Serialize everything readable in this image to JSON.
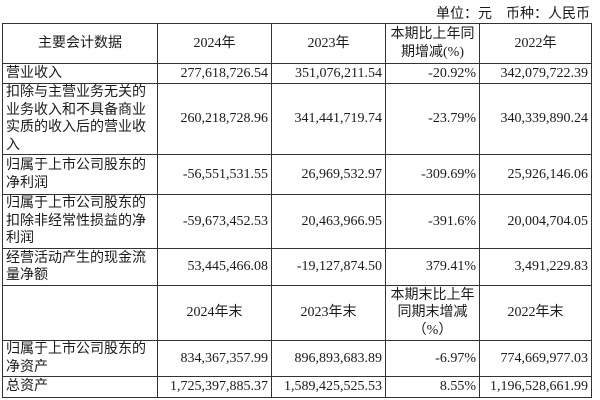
{
  "unit_note": {
    "unit": "单位：元",
    "currency": "币种：人民币"
  },
  "header1": [
    "主要会计数据",
    "2024年",
    "2023年",
    "本期比上年同期增减(%)",
    "2022年"
  ],
  "rows1": [
    {
      "label": "营业收入",
      "v2024": "277,618,726.54",
      "v2023": "351,076,211.54",
      "change": "-20.92%",
      "v2022": "342,079,722.39"
    },
    {
      "label": "扣除与主营业务无关的业务收入和不具备商业实质的收入后的营业收入",
      "v2024": "260,218,728.96",
      "v2023": "341,441,719.74",
      "change": "-23.79%",
      "v2022": "340,339,890.24"
    },
    {
      "label": "归属于上市公司股东的净利润",
      "v2024": "-56,551,531.55",
      "v2023": "26,969,532.97",
      "change": "-309.69%",
      "v2022": "25,926,146.06"
    },
    {
      "label": "归属于上市公司股东的扣除非经常性损益的净利润",
      "v2024": "-59,673,452.53",
      "v2023": "20,463,966.95",
      "change": "-391.6%",
      "v2022": "20,004,704.05"
    },
    {
      "label": "经营活动产生的现金流量净额",
      "v2024": "53,445,466.08",
      "v2023": "-19,127,874.50",
      "change": "379.41%",
      "v2022": "3,491,229.83"
    }
  ],
  "header2": [
    "",
    "2024年末",
    "2023年末",
    "本期末比上年同期末增减（%）",
    "2022年末"
  ],
  "rows2": [
    {
      "label": "归属于上市公司股东的净资产",
      "v2024": "834,367,357.99",
      "v2023": "896,893,683.89",
      "change": "-6.97%",
      "v2022": "774,669,977.03"
    },
    {
      "label": "总资产",
      "v2024": "1,725,397,885.37",
      "v2023": "1,589,425,525.53",
      "change": "8.55%",
      "v2022": "1,196,528,661.99"
    }
  ]
}
